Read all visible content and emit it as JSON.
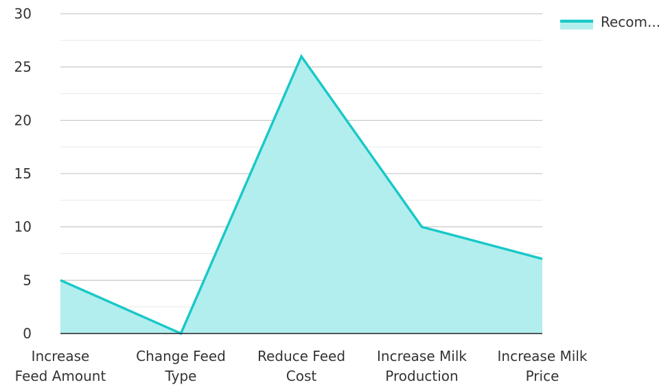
{
  "chart_data": {
    "type": "area",
    "categories": [
      [
        "Increase",
        "Feed Amount"
      ],
      [
        "Change Feed",
        "Type"
      ],
      [
        "Reduce Feed",
        "Cost"
      ],
      [
        "Increase Milk",
        "Production"
      ],
      [
        "Increase Milk",
        "Price"
      ]
    ],
    "series": [
      {
        "name": "Recom...",
        "values": [
          5,
          0,
          26,
          10,
          7
        ],
        "line_color": "#1ac8c8",
        "fill_color": "#b2eeee"
      }
    ],
    "yticks": [
      0,
      5,
      10,
      15,
      20,
      25,
      30
    ],
    "ylim": [
      0,
      30
    ],
    "grid": true,
    "legend_position": "top-right"
  }
}
